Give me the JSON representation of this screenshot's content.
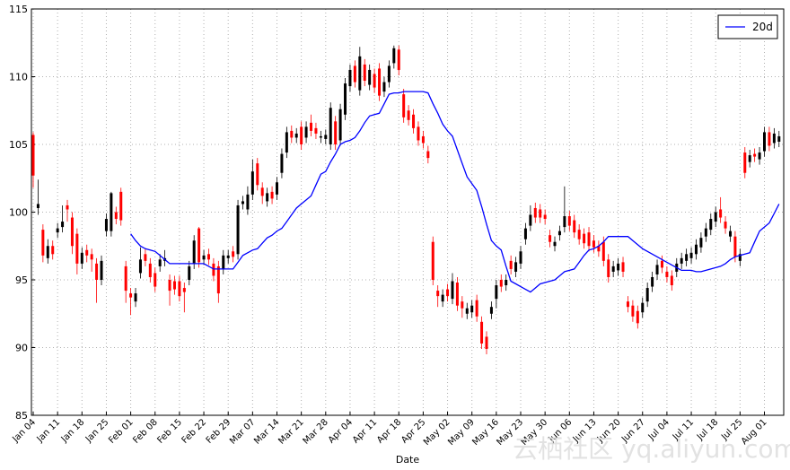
{
  "chart_data": {
    "type": "candlestick",
    "xlabel": "Date",
    "categories": [
      "Jan 04",
      null,
      null,
      null,
      null,
      "Jan 11",
      null,
      null,
      null,
      null,
      "Jan 18",
      null,
      null,
      null,
      null,
      "Jan 25",
      null,
      null,
      null,
      null,
      "Feb 01",
      null,
      null,
      null,
      null,
      "Feb 08",
      null,
      null,
      null,
      null,
      "Feb 15",
      null,
      null,
      null,
      null,
      "Feb 22",
      null,
      null,
      null,
      null,
      "Feb 29",
      null,
      null,
      null,
      null,
      "Mar 07",
      null,
      null,
      null,
      null,
      "Mar 14",
      null,
      null,
      null,
      null,
      "Mar 21",
      null,
      null,
      null,
      null,
      "Mar 28",
      null,
      null,
      null,
      null,
      "Apr 04",
      null,
      null,
      null,
      null,
      "Apr 11",
      null,
      null,
      null,
      null,
      "Apr 18",
      null,
      null,
      null,
      null,
      "Apr 25",
      null,
      null,
      null,
      null,
      "May 02",
      null,
      null,
      null,
      null,
      "May 09",
      null,
      null,
      null,
      null,
      "May 16",
      null,
      null,
      null,
      null,
      "May 23",
      null,
      null,
      null,
      null,
      "May 30",
      null,
      null,
      null,
      null,
      "Jun 06",
      null,
      null,
      null,
      null,
      "Jun 13",
      null,
      null,
      null,
      null,
      "Jun 20",
      null,
      null,
      null,
      null,
      "Jun 27",
      null,
      null,
      null,
      null,
      "Jul 04",
      null,
      null,
      null,
      null,
      "Jul 11",
      null,
      null,
      null,
      null,
      "Jul 18",
      null,
      null,
      null,
      null,
      "Jul 25",
      null,
      null,
      null,
      null,
      "Aug 01",
      null,
      null,
      null
    ],
    "open": [
      105.7,
      100.3,
      98.7,
      96.6,
      97.5,
      98.5,
      98.9,
      100.5,
      99.6,
      98.4,
      96.2,
      97.2,
      96.9,
      96.2,
      95.0,
      98.6,
      98.6,
      100.0,
      101.5,
      96.0,
      94.0,
      93.4,
      95.5,
      96.9,
      96.2,
      95.5,
      96.0,
      96.4,
      95.0,
      94.9,
      94.9,
      94.4,
      95.0,
      96.2,
      98.8,
      96.5,
      96.9,
      96.2,
      96.0,
      95.8,
      96.6,
      97.1,
      96.9,
      100.6,
      100.2,
      101.3,
      103.6,
      101.8,
      100.8,
      101.5,
      101.3,
      102.9,
      104.4,
      106.0,
      105.5,
      106.3,
      105.5,
      106.6,
      106.2,
      105.5,
      105.4,
      105.0,
      106.7,
      105.3,
      107.2,
      109.3,
      110.8,
      109.0,
      110.9,
      109.4,
      110.2,
      110.6,
      108.9,
      109.6,
      111.0,
      112.0,
      108.7,
      107.5,
      107.2,
      106.3,
      105.6,
      104.5,
      97.8,
      94.2,
      93.4,
      94.3,
      93.6,
      94.8,
      93.4,
      92.5,
      92.6,
      93.5,
      91.9,
      90.8,
      92.5,
      93.6,
      95.0,
      94.6,
      96.4,
      95.6,
      96.2,
      98.0,
      99.0,
      100.3,
      100.2,
      99.8,
      98.3,
      97.5,
      98.3,
      98.9,
      99.7,
      99.4,
      98.7,
      98.4,
      98.5,
      97.9,
      97.5,
      97.8,
      96.5,
      95.6,
      95.7,
      96.3,
      93.4,
      93.1,
      92.7,
      92.6,
      93.4,
      94.5,
      95.4,
      96.4,
      95.6,
      95.3,
      95.6,
      96.2,
      96.4,
      96.6,
      96.9,
      97.4,
      98.2,
      98.7,
      99.3,
      100.2,
      99.3,
      98.2,
      98.2,
      96.4,
      104.4,
      103.7,
      104.3,
      103.9,
      104.5,
      105.9,
      105.1,
      105.2
    ],
    "high": [
      105.9,
      102.4,
      99.1,
      98.0,
      97.9,
      99.2,
      100.5,
      100.9,
      100.0,
      98.8,
      97.4,
      97.6,
      97.3,
      96.6,
      96.8,
      99.9,
      101.5,
      100.4,
      101.8,
      96.4,
      94.4,
      94.4,
      97.4,
      97.3,
      96.6,
      95.9,
      96.9,
      97.2,
      95.4,
      95.3,
      95.3,
      94.8,
      96.4,
      98.3,
      98.9,
      97.2,
      97.3,
      96.6,
      96.4,
      97.2,
      97.2,
      97.5,
      100.9,
      101.2,
      101.9,
      103.9,
      104.0,
      102.2,
      101.8,
      101.9,
      102.6,
      104.7,
      106.3,
      106.4,
      106.2,
      106.7,
      106.7,
      107.2,
      106.6,
      106.0,
      106.1,
      108.1,
      107.1,
      108.0,
      109.9,
      110.9,
      111.2,
      112.2,
      111.3,
      110.9,
      110.6,
      111.0,
      110.0,
      111.2,
      112.3,
      112.3,
      109.1,
      107.9,
      107.6,
      106.7,
      106.0,
      104.9,
      98.2,
      94.6,
      94.3,
      94.7,
      95.5,
      95.2,
      93.8,
      93.3,
      93.5,
      93.9,
      92.3,
      91.2,
      93.4,
      95.0,
      95.4,
      95.4,
      96.8,
      96.7,
      97.5,
      99.2,
      100.5,
      100.7,
      100.6,
      100.2,
      98.7,
      98.2,
      99.0,
      101.9,
      100.1,
      99.8,
      99.1,
      98.8,
      98.9,
      98.3,
      97.9,
      98.2,
      96.9,
      96.4,
      96.6,
      96.7,
      93.8,
      93.5,
      93.1,
      93.7,
      94.8,
      95.6,
      96.5,
      96.8,
      96.0,
      95.7,
      96.6,
      97.0,
      97.3,
      97.4,
      98.0,
      98.5,
      99.2,
      99.9,
      100.4,
      101.1,
      99.7,
      99.0,
      98.6,
      97.3,
      104.8,
      104.6,
      104.7,
      104.8,
      106.3,
      106.3,
      106.2,
      106.0
    ],
    "low": [
      101.8,
      99.8,
      96.3,
      96.2,
      96.5,
      98.1,
      98.5,
      99.3,
      96.9,
      95.4,
      95.8,
      96.3,
      95.6,
      93.3,
      94.6,
      98.2,
      98.2,
      99.1,
      99.0,
      93.3,
      92.4,
      93.0,
      95.1,
      96.0,
      94.8,
      94.1,
      95.6,
      96.0,
      93.1,
      93.9,
      93.4,
      92.6,
      94.6,
      95.8,
      95.9,
      96.1,
      96.1,
      94.9,
      93.3,
      95.4,
      96.2,
      96.3,
      96.5,
      100.2,
      99.8,
      100.9,
      101.6,
      100.6,
      100.4,
      100.6,
      100.9,
      102.5,
      104.0,
      105.1,
      105.1,
      104.6,
      105.1,
      105.6,
      105.4,
      105.1,
      105.0,
      104.6,
      104.6,
      104.9,
      106.8,
      108.9,
      109.2,
      108.6,
      109.3,
      109.0,
      108.8,
      108.2,
      108.5,
      109.2,
      110.6,
      110.1,
      106.6,
      106.4,
      105.8,
      104.9,
      104.7,
      103.6,
      94.6,
      93.0,
      93.0,
      93.4,
      93.2,
      92.7,
      92.2,
      92.1,
      92.2,
      91.9,
      89.9,
      89.5,
      92.1,
      92.9,
      94.1,
      94.2,
      95.4,
      95.2,
      95.8,
      97.6,
      98.6,
      99.2,
      99.2,
      99.1,
      97.4,
      97.1,
      97.9,
      98.5,
      98.6,
      98.1,
      97.6,
      97.3,
      97.1,
      97.0,
      96.7,
      96.0,
      94.8,
      95.2,
      95.3,
      95.2,
      92.6,
      91.9,
      91.4,
      92.2,
      93.0,
      94.1,
      95.0,
      95.5,
      94.8,
      94.2,
      95.2,
      95.8,
      96.0,
      96.2,
      96.5,
      97.0,
      97.8,
      98.3,
      98.9,
      99.2,
      98.4,
      97.8,
      96.3,
      96.0,
      102.5,
      103.3,
      103.7,
      103.5,
      104.1,
      104.5,
      104.7,
      104.8
    ],
    "close": [
      102.7,
      100.6,
      96.8,
      97.5,
      96.9,
      98.8,
      99.3,
      100.2,
      97.5,
      96.2,
      97.0,
      96.8,
      96.5,
      95.0,
      96.4,
      99.5,
      101.4,
      99.5,
      99.4,
      94.2,
      93.7,
      94.0,
      96.5,
      96.4,
      95.2,
      94.5,
      96.5,
      96.6,
      94.2,
      94.3,
      93.8,
      94.1,
      96.0,
      97.9,
      96.3,
      96.8,
      96.5,
      95.3,
      94.0,
      96.8,
      96.8,
      96.7,
      100.5,
      100.8,
      101.3,
      103.0,
      102.0,
      101.2,
      101.4,
      101.0,
      102.2,
      104.3,
      105.9,
      105.5,
      105.8,
      105.0,
      106.3,
      106.0,
      105.8,
      105.6,
      105.7,
      107.7,
      105.0,
      107.6,
      109.5,
      110.5,
      109.6,
      111.5,
      109.7,
      110.5,
      109.2,
      108.6,
      109.6,
      110.8,
      112.1,
      110.5,
      107.0,
      106.8,
      106.2,
      105.3,
      105.1,
      104.0,
      95.0,
      93.8,
      93.9,
      93.8,
      94.9,
      93.1,
      92.9,
      92.9,
      93.1,
      92.3,
      90.3,
      89.9,
      93.0,
      94.6,
      94.5,
      95.0,
      95.8,
      96.3,
      97.1,
      98.8,
      99.8,
      99.6,
      99.6,
      99.5,
      97.8,
      97.8,
      98.6,
      99.7,
      99.0,
      98.5,
      98.0,
      97.7,
      97.5,
      97.4,
      97.1,
      96.4,
      95.2,
      96.0,
      96.2,
      95.6,
      93.0,
      92.3,
      91.8,
      93.3,
      94.4,
      95.2,
      96.1,
      95.9,
      95.2,
      94.6,
      96.2,
      96.6,
      96.9,
      97.0,
      97.6,
      98.1,
      98.8,
      99.5,
      100.0,
      99.6,
      98.8,
      98.6,
      96.7,
      96.9,
      102.9,
      104.2,
      104.1,
      104.4,
      105.9,
      104.9,
      105.8,
      105.6
    ],
    "colorup": "#000000",
    "colordown": "#ff0000",
    "series": [
      {
        "name": "20d",
        "color": "#0000ff",
        "values": [
          null,
          null,
          null,
          null,
          null,
          null,
          null,
          null,
          null,
          null,
          null,
          null,
          null,
          null,
          null,
          null,
          null,
          null,
          null,
          null,
          98.4,
          97.9,
          97.5,
          97.3,
          97.2,
          97.1,
          96.8,
          96.5,
          96.2,
          96.2,
          96.2,
          96.2,
          96.2,
          96.2,
          96.2,
          96.2,
          96.0,
          95.8,
          95.8,
          95.8,
          95.8,
          95.8,
          96.3,
          96.8,
          97.0,
          97.2,
          97.3,
          97.7,
          98.1,
          98.3,
          98.6,
          98.8,
          99.3,
          99.8,
          100.3,
          100.6,
          100.9,
          101.2,
          102.0,
          102.8,
          103.0,
          103.7,
          104.3,
          105.0,
          105.2,
          105.3,
          105.5,
          106.0,
          106.6,
          107.1,
          107.2,
          107.3,
          108.0,
          108.7,
          108.8,
          108.8,
          108.9,
          108.9,
          108.9,
          108.9,
          108.9,
          108.8,
          108.0,
          107.3,
          106.5,
          106.0,
          105.6,
          104.6,
          103.6,
          102.6,
          102.1,
          101.6,
          100.4,
          99.1,
          97.9,
          97.5,
          97.2,
          96.0,
          94.9,
          94.7,
          94.5,
          94.3,
          94.1,
          94.4,
          94.7,
          94.8,
          94.9,
          95.0,
          95.3,
          95.6,
          95.7,
          95.8,
          96.3,
          96.8,
          97.2,
          97.3,
          97.5,
          97.8,
          98.2,
          98.2,
          98.2,
          98.2,
          98.2,
          97.9,
          97.6,
          97.3,
          97.1,
          96.9,
          96.7,
          96.5,
          96.3,
          96.1,
          95.9,
          95.7,
          95.7,
          95.7,
          95.6,
          95.6,
          95.7,
          95.8,
          95.9,
          96.0,
          96.2,
          96.5,
          96.7,
          96.8,
          96.9,
          97.0,
          97.8,
          98.6,
          98.9,
          99.2,
          99.9,
          100.6
        ]
      }
    ],
    "ylim": [
      85,
      115
    ],
    "yticks": [
      85,
      90,
      95,
      100,
      105,
      110,
      115
    ],
    "grid": true,
    "legend": "upper right"
  },
  "watermark": "云栖社区 yq.aliyun.com"
}
